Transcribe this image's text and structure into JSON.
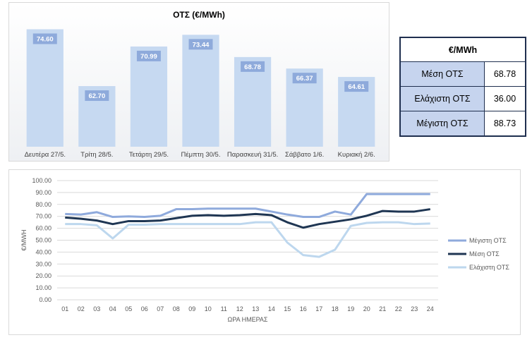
{
  "colors": {
    "bar_fill": "#c6d9f1",
    "label_box": "#8eaadb",
    "max_line": "#8faadc",
    "avg_line": "#1f3653",
    "min_line": "#bdd7ee",
    "table_label_bg": "#c6d4ee",
    "table_border": "#1f2f4f"
  },
  "stats_table": {
    "header": "€/MWh",
    "rows": [
      {
        "label": "Μέση ΟΤΣ",
        "value": "68.78"
      },
      {
        "label": "Ελάχιστη ΟΤΣ",
        "value": "36.00"
      },
      {
        "label": "Μέγιστη ΟΤΣ",
        "value": "88.73"
      }
    ]
  },
  "chart_data": [
    {
      "type": "bar",
      "title": "ΟΤΣ (€/MWh)",
      "categories": [
        "Δευτέρα 27/5.",
        "Τρίτη 28/5.",
        "Τετάρτη 29/5.",
        "Πέμπτη 30/5.",
        "Παρασκευή 31/5.",
        "Σάββατο 1/6.",
        "Κυριακή 2/6."
      ],
      "values": [
        74.6,
        62.7,
        70.99,
        73.44,
        68.78,
        66.37,
        64.61
      ],
      "value_labels": [
        "74.60",
        "62.70",
        "70.99",
        "73.44",
        "68.78",
        "66.37",
        "64.61"
      ],
      "ylim": [
        50,
        76
      ]
    },
    {
      "type": "line",
      "title": "",
      "xlabel": "ΩΡΑ ΗΜΕΡΑΣ",
      "ylabel": "€/MWH",
      "x": [
        "01",
        "02",
        "03",
        "04",
        "05",
        "06",
        "07",
        "08",
        "09",
        "10",
        "11",
        "12",
        "13",
        "14",
        "15",
        "16",
        "17",
        "18",
        "19",
        "20",
        "21",
        "22",
        "23",
        "24"
      ],
      "ylim": [
        0,
        100
      ],
      "yticks": [
        "0.00",
        "10.00",
        "20.00",
        "30.00",
        "40.00",
        "50.00",
        "60.00",
        "70.00",
        "80.00",
        "90.00",
        "100.00"
      ],
      "grid": true,
      "legend": "right",
      "series": [
        {
          "name": "Μέγιστη ΟΤΣ",
          "values": [
            72,
            71.5,
            73.5,
            69.5,
            70,
            69.5,
            70.5,
            76,
            76,
            76.5,
            76.5,
            76.5,
            76.5,
            74,
            71.5,
            69.5,
            69.5,
            74,
            71.5,
            88.7,
            88.7,
            88.7,
            88.7,
            88.7
          ]
        },
        {
          "name": "Μέση ΟΤΣ",
          "values": [
            69,
            68,
            66.5,
            63.5,
            66,
            66,
            66.5,
            68.5,
            70.5,
            71,
            70.5,
            71,
            72,
            71,
            65,
            60.5,
            63.5,
            65.5,
            67.5,
            70.5,
            74.5,
            74,
            74,
            76
          ]
        },
        {
          "name": "Ελάχιστη ΟΤΣ",
          "values": [
            63.5,
            63.5,
            62.5,
            51.5,
            63,
            63,
            63.5,
            63.5,
            63.5,
            63.5,
            63.5,
            63.5,
            65,
            65,
            48,
            37.5,
            36,
            42,
            62,
            64.5,
            65,
            65,
            63.5,
            64
          ]
        }
      ]
    }
  ]
}
